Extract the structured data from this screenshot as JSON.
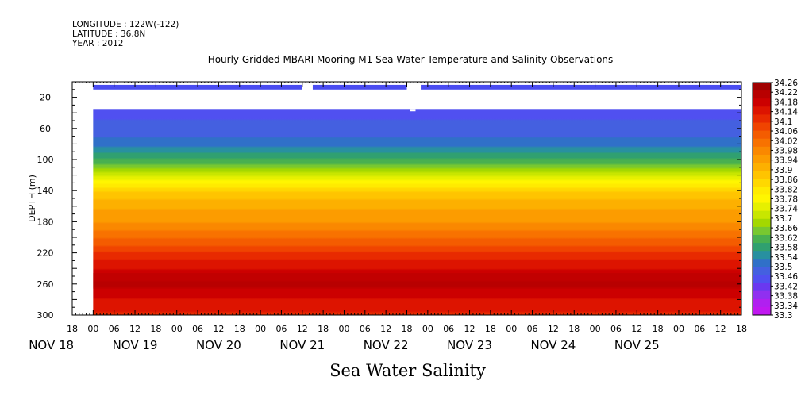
{
  "header": {
    "lines": [
      "LONGITUDE : 122W(-122)",
      "LATITUDE : 36.8N",
      "YEAR : 2012"
    ]
  },
  "chart_data": {
    "type": "heatmap",
    "title": "Hourly Gridded MBARI Mooring M1 Sea Water Temperature and Salinity Observations",
    "xlabel": "Sea Water Salinity",
    "ylabel": "DEPTH (m)",
    "ylim": [
      300,
      0
    ],
    "y_ticks": [
      20,
      60,
      100,
      140,
      180,
      220,
      260,
      300
    ],
    "x_hour_ticks": [
      "18",
      "00",
      "06",
      "12",
      "18",
      "00",
      "06",
      "12",
      "18",
      "00",
      "06",
      "12",
      "18",
      "00",
      "06",
      "12",
      "18",
      "00",
      "06",
      "12",
      "18",
      "00",
      "06",
      "12",
      "18",
      "00",
      "06",
      "12",
      "18",
      "00",
      "06",
      "12",
      "18"
    ],
    "x_day_labels": [
      "NOV 18",
      "NOV 19",
      "NOV 20",
      "NOV 21",
      "NOV 22",
      "NOV 23",
      "NOV 24",
      "NOV 25"
    ],
    "x_day_label_hours": [
      0,
      24,
      48,
      72,
      96,
      120,
      144,
      168
    ],
    "time_range_hours": [
      18,
      210
    ],
    "data_start_hour": 24,
    "gaps_hours": [
      [
        84,
        87
      ],
      [
        114,
        118
      ]
    ],
    "colorbar_levels": [
      "34.26",
      "34.22",
      "34.18",
      "34.14",
      "34.1",
      "34.06",
      "34.02",
      "33.98",
      "33.94",
      "33.9",
      "33.86",
      "33.82",
      "33.78",
      "33.74",
      "33.7",
      "33.66",
      "33.62",
      "33.58",
      "33.54",
      "33.5",
      "33.46",
      "33.42",
      "33.38",
      "33.34",
      "33.3"
    ],
    "colorbar_colors": [
      "#a00000",
      "#b80000",
      "#cc0000",
      "#dd1400",
      "#e82a00",
      "#f04400",
      "#f45c00",
      "#f87200",
      "#fa8800",
      "#fc9c00",
      "#fdb000",
      "#ffc400",
      "#ffd800",
      "#ffeb00",
      "#fff600",
      "#e6f000",
      "#c8e600",
      "#a4d800",
      "#78c830",
      "#48b050",
      "#30a070",
      "#2890a0",
      "#3070c8",
      "#4460e0",
      "#5050f0",
      "#6a38f0",
      "#9030f0",
      "#b020f0",
      "#c018f0"
    ],
    "profile_depth_m": [
      35,
      60,
      80,
      100,
      120,
      140,
      160,
      180,
      200,
      220,
      240,
      260,
      280,
      300
    ],
    "profile_salinity": [
      33.46,
      33.47,
      33.52,
      33.6,
      33.72,
      33.86,
      33.92,
      33.96,
      34.02,
      34.1,
      34.16,
      34.2,
      34.16,
      34.12
    ]
  }
}
